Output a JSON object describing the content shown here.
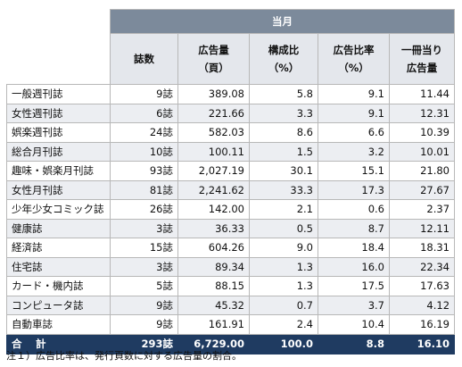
{
  "table": {
    "group_header": "当月",
    "columns": [
      {
        "key": "count",
        "lines": [
          "誌数"
        ]
      },
      {
        "key": "ad_pages",
        "lines": [
          "広告量",
          "（頁）"
        ]
      },
      {
        "key": "composition",
        "lines": [
          "構成比",
          "（%）"
        ]
      },
      {
        "key": "ad_ratio",
        "lines": [
          "広告比率",
          "（%）"
        ]
      },
      {
        "key": "ad_per_issue",
        "lines": [
          "一冊当り",
          "広告量"
        ]
      }
    ],
    "rows": [
      {
        "label": "一般週刊誌",
        "count": "9誌",
        "ad_pages": "389.08",
        "composition": "5.8",
        "ad_ratio": "9.1",
        "ad_per_issue": "11.44"
      },
      {
        "label": "女性週刊誌",
        "count": "6誌",
        "ad_pages": "221.66",
        "composition": "3.3",
        "ad_ratio": "9.1",
        "ad_per_issue": "12.31"
      },
      {
        "label": "娯楽週刊誌",
        "count": "24誌",
        "ad_pages": "582.03",
        "composition": "8.6",
        "ad_ratio": "6.6",
        "ad_per_issue": "10.39"
      },
      {
        "label": "総合月刊誌",
        "count": "10誌",
        "ad_pages": "100.11",
        "composition": "1.5",
        "ad_ratio": "3.2",
        "ad_per_issue": "10.01"
      },
      {
        "label": "趣味・娯楽月刊誌",
        "count": "93誌",
        "ad_pages": "2,027.19",
        "composition": "30.1",
        "ad_ratio": "15.1",
        "ad_per_issue": "21.80"
      },
      {
        "label": "女性月刊誌",
        "count": "81誌",
        "ad_pages": "2,241.62",
        "composition": "33.3",
        "ad_ratio": "17.3",
        "ad_per_issue": "27.67"
      },
      {
        "label": "少年少女コミック誌",
        "count": "26誌",
        "ad_pages": "142.00",
        "composition": "2.1",
        "ad_ratio": "0.6",
        "ad_per_issue": "2.37"
      },
      {
        "label": "健康誌",
        "count": "3誌",
        "ad_pages": "36.33",
        "composition": "0.5",
        "ad_ratio": "8.7",
        "ad_per_issue": "12.11"
      },
      {
        "label": "経済誌",
        "count": "15誌",
        "ad_pages": "604.26",
        "composition": "9.0",
        "ad_ratio": "18.4",
        "ad_per_issue": "18.31"
      },
      {
        "label": "住宅誌",
        "count": "3誌",
        "ad_pages": "89.34",
        "composition": "1.3",
        "ad_ratio": "16.0",
        "ad_per_issue": "22.34"
      },
      {
        "label": "カード・機内誌",
        "count": "5誌",
        "ad_pages": "88.15",
        "composition": "1.3",
        "ad_ratio": "17.5",
        "ad_per_issue": "17.63"
      },
      {
        "label": "コンピュータ誌",
        "count": "9誌",
        "ad_pages": "45.32",
        "composition": "0.7",
        "ad_ratio": "3.7",
        "ad_per_issue": "4.12"
      },
      {
        "label": "自動車誌",
        "count": "9誌",
        "ad_pages": "161.91",
        "composition": "2.4",
        "ad_ratio": "10.4",
        "ad_per_issue": "16.19"
      }
    ],
    "total": {
      "label": "合　計",
      "count": "293誌",
      "ad_pages": "6,729.00",
      "composition": "100.0",
      "ad_ratio": "8.8",
      "ad_per_issue": "16.10"
    }
  },
  "footnote": "注１）広告比率は、発行頁数に対する広告量の割合。"
}
